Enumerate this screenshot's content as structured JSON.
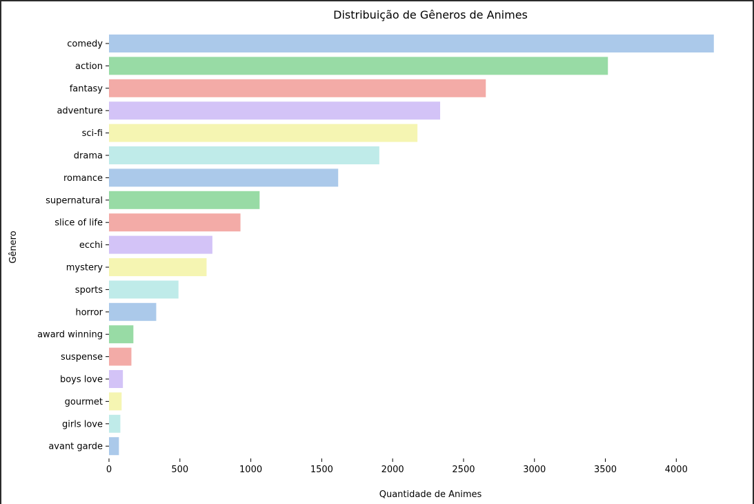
{
  "chart_data": {
    "type": "bar",
    "orientation": "horizontal",
    "title": "Distribuição de Gêneros de Animes",
    "xlabel": "Quantidade de Animes",
    "ylabel": "Gênero",
    "xlim": [
      0,
      4300
    ],
    "xticks": [
      0,
      500,
      1000,
      1500,
      2000,
      2500,
      3000,
      3500,
      4000
    ],
    "grid": false,
    "categories": [
      "comedy",
      "action",
      "fantasy",
      "adventure",
      "sci-fi",
      "drama",
      "romance",
      "supernatural",
      "slice of life",
      "ecchi",
      "mystery",
      "sports",
      "horror",
      "award winning",
      "suspense",
      "boys love",
      "gourmet",
      "girls love",
      "avant garde"
    ],
    "values": [
      4265,
      3518,
      2657,
      2335,
      2175,
      1906,
      1616,
      1062,
      927,
      729,
      688,
      490,
      333,
      172,
      158,
      98,
      89,
      80,
      70
    ],
    "palette": [
      "#abc9ea",
      "#98dba5",
      "#f3aba7",
      "#d3c3f7",
      "#f5f5b2",
      "#bfebe9"
    ]
  }
}
